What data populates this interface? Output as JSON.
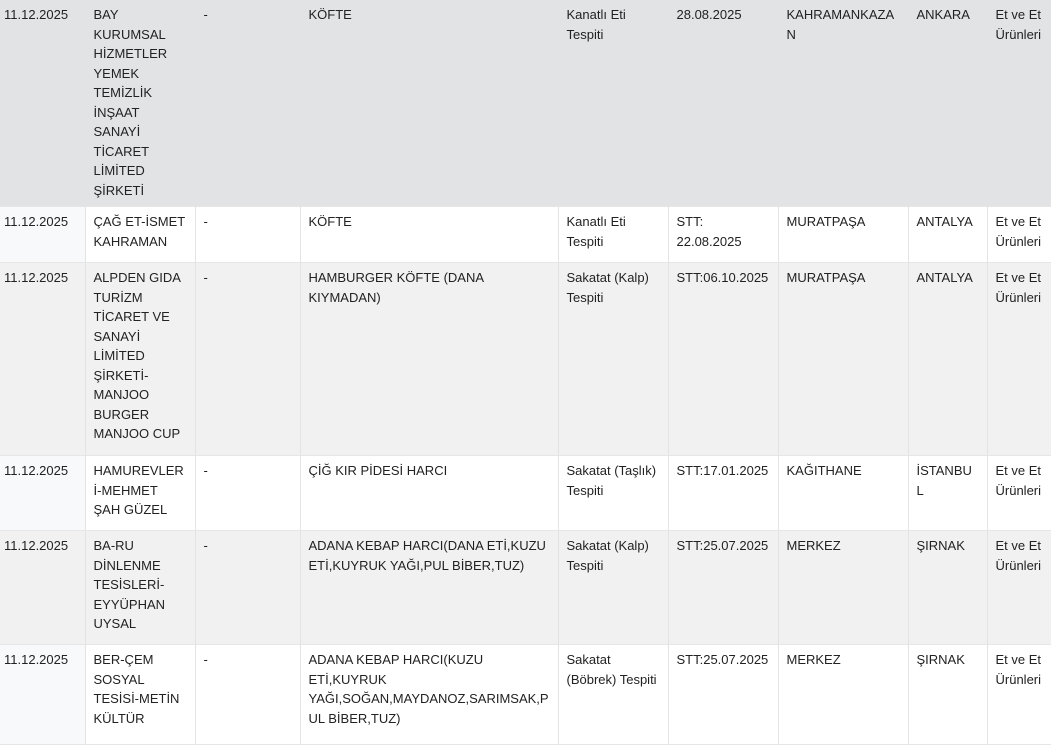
{
  "rows": [
    {
      "date": "11.12.2025",
      "company": "BAY KURUMSAL HİZMETLER YEMEK TEMİZLİK İNŞAAT SANAYİ TİCARET LİMİTED ŞİRKETİ",
      "brand": "-",
      "product": "KÖFTE",
      "finding": "Kanatlı Eti Tespiti",
      "batch": "28.08.2025",
      "district": "KAHRAMANKAZAN",
      "city": "ANKARA",
      "group": "Et ve Et Ürünleri"
    },
    {
      "date": "11.12.2025",
      "company": "ÇAĞ ET-İSMET KAHRAMAN",
      "brand": "-",
      "product": "KÖFTE",
      "finding": "Kanatlı Eti Tespiti",
      "batch": "STT: 22.08.2025",
      "district": "MURATPAŞA",
      "city": "ANTALYA",
      "group": "Et ve Et Ürünleri"
    },
    {
      "date": "11.12.2025",
      "company": "ALPDEN GIDA TURİZM TİCARET VE SANAYİ LİMİTED ŞİRKETİ-MANJOO BURGER MANJOO CUP",
      "brand": "-",
      "product": "HAMBURGER KÖFTE (DANA KIYMADAN)",
      "finding": "Sakatat (Kalp) Tespiti",
      "batch": "STT:06.10.2025",
      "district": "MURATPAŞA",
      "city": "ANTALYA",
      "group": "Et ve Et Ürünleri"
    },
    {
      "date": "11.12.2025",
      "company": "HAMUREVLERİ-MEHMET ŞAH GÜZEL",
      "brand": "-",
      "product": "ÇİĞ KIR PİDESİ HARCI",
      "finding": "Sakatat (Taşlık) Tespiti",
      "batch": "STT:17.01.2025",
      "district": "KAĞITHANE",
      "city": "İSTANBUL",
      "group": "Et ve Et Ürünleri"
    },
    {
      "date": "11.12.2025",
      "company": "BA-RU DİNLENME TESİSLERİ-EYYÜPHAN UYSAL",
      "brand": "-",
      "product": "ADANA KEBAP HARCI(DANA ETİ,KUZU ETİ,KUYRUK YAĞI,PUL BİBER,TUZ)",
      "finding": "Sakatat (Kalp) Tespiti",
      "batch": "STT:25.07.2025",
      "district": "MERKEZ",
      "city": "ŞIRNAK",
      "group": "Et ve Et Ürünleri"
    },
    {
      "date": "11.12.2025",
      "company": "BER-ÇEM SOSYAL TESİSİ-METİN KÜLTÜR",
      "brand": "-",
      "product": "ADANA KEBAP HARCI(KUZU ETİ,KUYRUK YAĞI,SOĞAN,MAYDANOZ,SARIMSAK,PUL BİBER,TUZ)",
      "finding": "Sakatat (Böbrek) Tespiti",
      "batch": "STT:25.07.2025",
      "district": "MERKEZ",
      "city": "ŞIRNAK",
      "group": "Et ve Et Ürünleri"
    }
  ]
}
